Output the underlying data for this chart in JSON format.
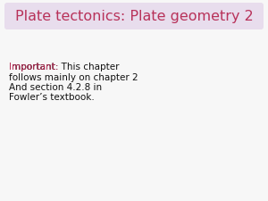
{
  "title": "Plate tectonics: Plate geometry 2",
  "title_color": "#b8325a",
  "title_fontsize": 11.5,
  "background_color": "#f7f7f7",
  "title_box_color": "#e8dded",
  "important_label": "Important:",
  "important_color": "#b8325a",
  "body_line1": " This chapter",
  "body_line2": "follows mainly on chapter 2",
  "body_line3": "And section 4.2.8 in",
  "body_line4": "Fowler’s textbook.",
  "body_color": "#111111",
  "text_fontsize": 7.5
}
